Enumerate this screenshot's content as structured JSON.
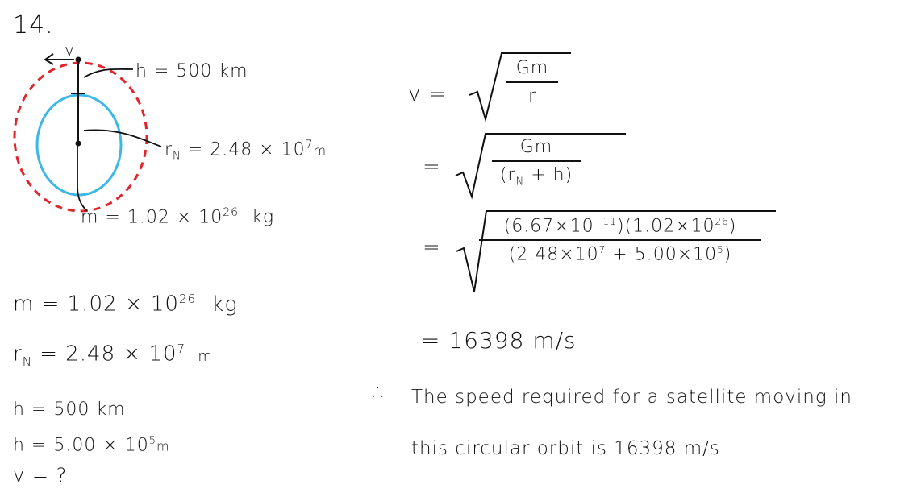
{
  "problem_number": "14.",
  "diagram": {
    "v_label": "v",
    "h_label": "h = 500 km",
    "rn_label": "r",
    "rn_sub": "N",
    "rn_value": " = 2.48 × 10",
    "rn_exp": "7",
    "rn_unit": "m",
    "m_label": "m = 1.02 × 10",
    "m_exp": "26",
    "m_unit": "kg",
    "colors": {
      "planet": "#3cb8e6",
      "orbit": "#e0262a",
      "ink": "#111111"
    }
  },
  "givens": {
    "m_text": "m = 1.02 × 10",
    "m_exp": "26",
    "m_unit": "kg",
    "rn_r": "r",
    "rn_sub": "N",
    "rn_text": " = 2.48 × 10",
    "rn_exp": "7",
    "rn_unit": "m",
    "h1": "h = 500 km",
    "h2_text": "h = 5.00 × 10",
    "h2_exp": "5",
    "h2_unit": "m",
    "v": "v = ?"
  },
  "solution": {
    "v_eq": "v =",
    "eq": "=",
    "f1_num": "Gm",
    "f1_den": "r",
    "f2_num": "Gm",
    "f2_den_a": "(r",
    "f2_den_sub": "N",
    "f2_den_b": " + h)",
    "f3_num_a": "(6.67×10",
    "f3_num_exp1": "−11",
    "f3_num_b": ")(1.02×10",
    "f3_num_exp2": "26",
    "f3_num_c": ")",
    "f3_den_a": "(2.48×10",
    "f3_den_exp1": "7",
    "f3_den_b": " + 5.00×10",
    "f3_den_exp2": "5",
    "f3_den_c": ")",
    "result": "= 16398 m/s",
    "therefore": "∴",
    "conclusion_1": "The speed required for a satellite moving in",
    "conclusion_2": "this circular orbit is 16398 m/s."
  }
}
